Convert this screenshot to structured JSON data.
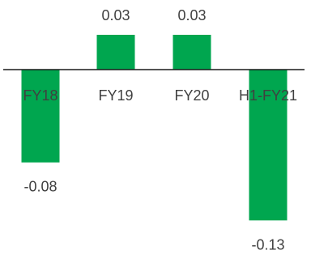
{
  "chart_data": {
    "type": "bar",
    "categories": [
      "FY18",
      "FY19",
      "FY20",
      "H1-FY21"
    ],
    "values": [
      -0.08,
      0.03,
      0.03,
      -0.13
    ],
    "data_labels": [
      "-0.08",
      "0.03",
      "0.03",
      "-0.13"
    ],
    "ylim": [
      -0.13,
      0.03
    ],
    "title": "",
    "xlabel": "",
    "ylabel": "",
    "grid": false,
    "legend": "none",
    "colors": {
      "bar": "#00A64F",
      "axis": "#1a1a1a",
      "text": "#404040"
    }
  }
}
